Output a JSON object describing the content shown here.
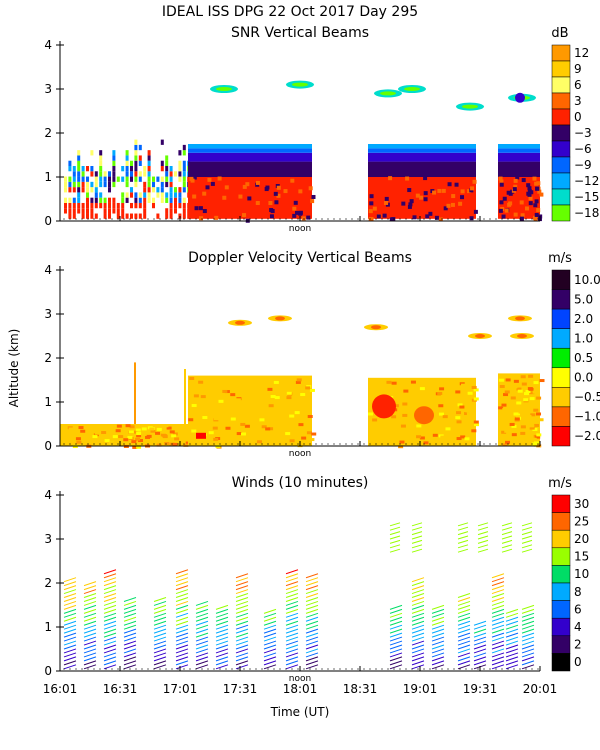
{
  "figure": {
    "title": "IDEAL ISS DPG  22 Oct 2017 Day 295",
    "ylabel": "Altitude (km)",
    "xlabel": "Time (UT)",
    "x_ticks": [
      "16:01",
      "16:31",
      "17:01",
      "17:31",
      "18:01",
      "18:31",
      "19:01",
      "19:31",
      "20:01"
    ],
    "y_ticks": [
      "0",
      "1",
      "2",
      "3",
      "4"
    ],
    "noon_label": "noon"
  },
  "chart_data": [
    {
      "type": "heatmap",
      "title": "SNR Vertical Beams",
      "unit": "dB",
      "ylim": [
        0,
        4
      ],
      "colorbar": {
        "labels": [
          "12",
          "9",
          "6",
          "3",
          "0",
          "−3",
          "−6",
          "−9",
          "−12",
          "−15",
          "−18"
        ],
        "colors": [
          "#ff9900",
          "#ffcc00",
          "#ffff66",
          "#ff6600",
          "#ff2200",
          "#330066",
          "#3300cc",
          "#0066ff",
          "#00aaff",
          "#00ddcc",
          "#66ff00"
        ]
      }
    },
    {
      "type": "heatmap",
      "title": "Doppler Velocity Vertical Beams",
      "unit": "m/s",
      "ylim": [
        0,
        4
      ],
      "colorbar": {
        "labels": [
          "10.0",
          "5.0",
          "2.0",
          "1.0",
          "0.5",
          "0.0",
          "−0.5",
          "−1.0",
          "−2.0"
        ],
        "colors": [
          "#220022",
          "#330066",
          "#0044ff",
          "#00aaff",
          "#00ee00",
          "#ffff00",
          "#ffcc00",
          "#ff6600",
          "#ff0000"
        ]
      }
    },
    {
      "type": "scatter",
      "title": "Winds (10 minutes)",
      "unit": "m/s",
      "ylim": [
        0,
        4
      ],
      "colorbar": {
        "labels": [
          "30",
          "25",
          "20",
          "15",
          "10",
          "8",
          "6",
          "4",
          "2",
          "0"
        ],
        "colors": [
          "#ff0000",
          "#ff6600",
          "#ffcc00",
          "#99ff00",
          "#00dd66",
          "#00aaff",
          "#0066ff",
          "#3300cc",
          "#330066",
          "#000000"
        ]
      }
    }
  ]
}
